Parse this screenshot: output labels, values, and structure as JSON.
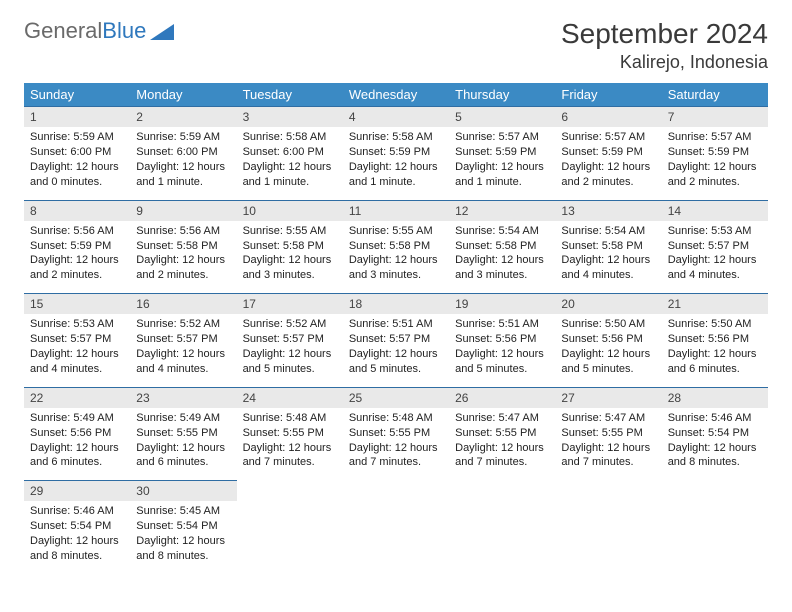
{
  "brand": {
    "word1": "General",
    "word2": "Blue"
  },
  "header": {
    "month": "September 2024",
    "location": "Kalirejo, Indonesia"
  },
  "colors": {
    "header_bg": "#3b8ac4",
    "header_text": "#ffffff",
    "daynum_bg": "#e9e9e9",
    "rule": "#2f6da3",
    "logo_gray": "#6a6a6a",
    "logo_blue": "#2f78bd"
  },
  "weekdays": [
    "Sunday",
    "Monday",
    "Tuesday",
    "Wednesday",
    "Thursday",
    "Friday",
    "Saturday"
  ],
  "weeks": [
    [
      {
        "n": "1",
        "sr": "Sunrise: 5:59 AM",
        "ss": "Sunset: 6:00 PM",
        "d1": "Daylight: 12 hours",
        "d2": "and 0 minutes."
      },
      {
        "n": "2",
        "sr": "Sunrise: 5:59 AM",
        "ss": "Sunset: 6:00 PM",
        "d1": "Daylight: 12 hours",
        "d2": "and 1 minute."
      },
      {
        "n": "3",
        "sr": "Sunrise: 5:58 AM",
        "ss": "Sunset: 6:00 PM",
        "d1": "Daylight: 12 hours",
        "d2": "and 1 minute."
      },
      {
        "n": "4",
        "sr": "Sunrise: 5:58 AM",
        "ss": "Sunset: 5:59 PM",
        "d1": "Daylight: 12 hours",
        "d2": "and 1 minute."
      },
      {
        "n": "5",
        "sr": "Sunrise: 5:57 AM",
        "ss": "Sunset: 5:59 PM",
        "d1": "Daylight: 12 hours",
        "d2": "and 1 minute."
      },
      {
        "n": "6",
        "sr": "Sunrise: 5:57 AM",
        "ss": "Sunset: 5:59 PM",
        "d1": "Daylight: 12 hours",
        "d2": "and 2 minutes."
      },
      {
        "n": "7",
        "sr": "Sunrise: 5:57 AM",
        "ss": "Sunset: 5:59 PM",
        "d1": "Daylight: 12 hours",
        "d2": "and 2 minutes."
      }
    ],
    [
      {
        "n": "8",
        "sr": "Sunrise: 5:56 AM",
        "ss": "Sunset: 5:59 PM",
        "d1": "Daylight: 12 hours",
        "d2": "and 2 minutes."
      },
      {
        "n": "9",
        "sr": "Sunrise: 5:56 AM",
        "ss": "Sunset: 5:58 PM",
        "d1": "Daylight: 12 hours",
        "d2": "and 2 minutes."
      },
      {
        "n": "10",
        "sr": "Sunrise: 5:55 AM",
        "ss": "Sunset: 5:58 PM",
        "d1": "Daylight: 12 hours",
        "d2": "and 3 minutes."
      },
      {
        "n": "11",
        "sr": "Sunrise: 5:55 AM",
        "ss": "Sunset: 5:58 PM",
        "d1": "Daylight: 12 hours",
        "d2": "and 3 minutes."
      },
      {
        "n": "12",
        "sr": "Sunrise: 5:54 AM",
        "ss": "Sunset: 5:58 PM",
        "d1": "Daylight: 12 hours",
        "d2": "and 3 minutes."
      },
      {
        "n": "13",
        "sr": "Sunrise: 5:54 AM",
        "ss": "Sunset: 5:58 PM",
        "d1": "Daylight: 12 hours",
        "d2": "and 4 minutes."
      },
      {
        "n": "14",
        "sr": "Sunrise: 5:53 AM",
        "ss": "Sunset: 5:57 PM",
        "d1": "Daylight: 12 hours",
        "d2": "and 4 minutes."
      }
    ],
    [
      {
        "n": "15",
        "sr": "Sunrise: 5:53 AM",
        "ss": "Sunset: 5:57 PM",
        "d1": "Daylight: 12 hours",
        "d2": "and 4 minutes."
      },
      {
        "n": "16",
        "sr": "Sunrise: 5:52 AM",
        "ss": "Sunset: 5:57 PM",
        "d1": "Daylight: 12 hours",
        "d2": "and 4 minutes."
      },
      {
        "n": "17",
        "sr": "Sunrise: 5:52 AM",
        "ss": "Sunset: 5:57 PM",
        "d1": "Daylight: 12 hours",
        "d2": "and 5 minutes."
      },
      {
        "n": "18",
        "sr": "Sunrise: 5:51 AM",
        "ss": "Sunset: 5:57 PM",
        "d1": "Daylight: 12 hours",
        "d2": "and 5 minutes."
      },
      {
        "n": "19",
        "sr": "Sunrise: 5:51 AM",
        "ss": "Sunset: 5:56 PM",
        "d1": "Daylight: 12 hours",
        "d2": "and 5 minutes."
      },
      {
        "n": "20",
        "sr": "Sunrise: 5:50 AM",
        "ss": "Sunset: 5:56 PM",
        "d1": "Daylight: 12 hours",
        "d2": "and 5 minutes."
      },
      {
        "n": "21",
        "sr": "Sunrise: 5:50 AM",
        "ss": "Sunset: 5:56 PM",
        "d1": "Daylight: 12 hours",
        "d2": "and 6 minutes."
      }
    ],
    [
      {
        "n": "22",
        "sr": "Sunrise: 5:49 AM",
        "ss": "Sunset: 5:56 PM",
        "d1": "Daylight: 12 hours",
        "d2": "and 6 minutes."
      },
      {
        "n": "23",
        "sr": "Sunrise: 5:49 AM",
        "ss": "Sunset: 5:55 PM",
        "d1": "Daylight: 12 hours",
        "d2": "and 6 minutes."
      },
      {
        "n": "24",
        "sr": "Sunrise: 5:48 AM",
        "ss": "Sunset: 5:55 PM",
        "d1": "Daylight: 12 hours",
        "d2": "and 7 minutes."
      },
      {
        "n": "25",
        "sr": "Sunrise: 5:48 AM",
        "ss": "Sunset: 5:55 PM",
        "d1": "Daylight: 12 hours",
        "d2": "and 7 minutes."
      },
      {
        "n": "26",
        "sr": "Sunrise: 5:47 AM",
        "ss": "Sunset: 5:55 PM",
        "d1": "Daylight: 12 hours",
        "d2": "and 7 minutes."
      },
      {
        "n": "27",
        "sr": "Sunrise: 5:47 AM",
        "ss": "Sunset: 5:55 PM",
        "d1": "Daylight: 12 hours",
        "d2": "and 7 minutes."
      },
      {
        "n": "28",
        "sr": "Sunrise: 5:46 AM",
        "ss": "Sunset: 5:54 PM",
        "d1": "Daylight: 12 hours",
        "d2": "and 8 minutes."
      }
    ],
    [
      {
        "n": "29",
        "sr": "Sunrise: 5:46 AM",
        "ss": "Sunset: 5:54 PM",
        "d1": "Daylight: 12 hours",
        "d2": "and 8 minutes."
      },
      {
        "n": "30",
        "sr": "Sunrise: 5:45 AM",
        "ss": "Sunset: 5:54 PM",
        "d1": "Daylight: 12 hours",
        "d2": "and 8 minutes."
      },
      {
        "empty": true
      },
      {
        "empty": true
      },
      {
        "empty": true
      },
      {
        "empty": true
      },
      {
        "empty": true
      }
    ]
  ]
}
